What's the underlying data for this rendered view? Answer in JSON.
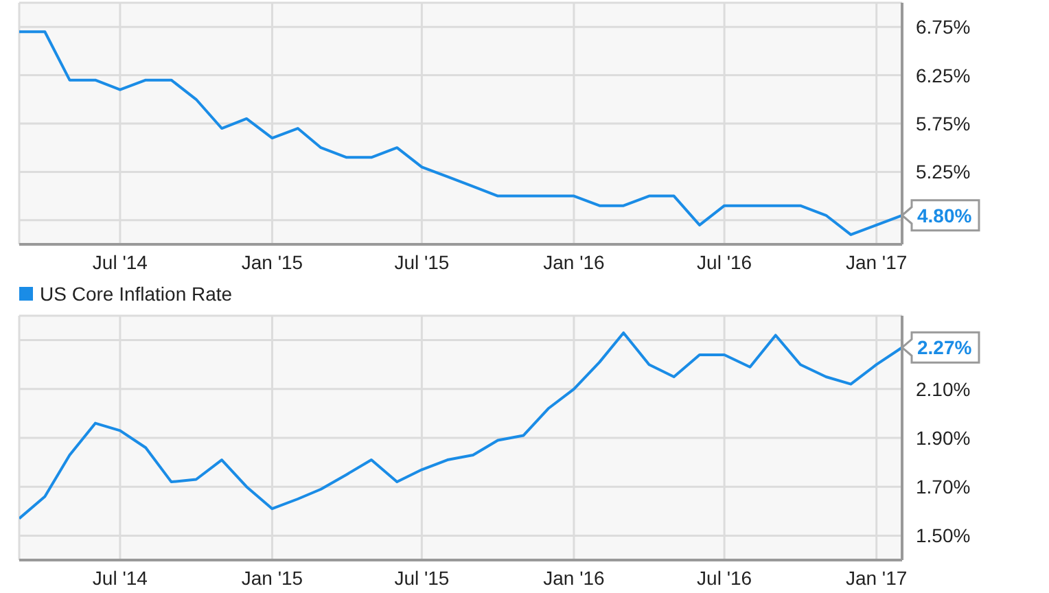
{
  "chart_data": [
    {
      "type": "line",
      "x": [
        "2014-03",
        "2014-04",
        "2014-05",
        "2014-06",
        "2014-07",
        "2014-08",
        "2014-09",
        "2014-10",
        "2014-11",
        "2014-12",
        "2015-01",
        "2015-02",
        "2015-03",
        "2015-04",
        "2015-05",
        "2015-06",
        "2015-07",
        "2015-08",
        "2015-09",
        "2015-10",
        "2015-11",
        "2015-12",
        "2016-01",
        "2016-02",
        "2016-03",
        "2016-04",
        "2016-05",
        "2016-06",
        "2016-07",
        "2016-08",
        "2016-09",
        "2016-10",
        "2016-11",
        "2016-12",
        "2017-01",
        "2017-02"
      ],
      "series": [
        {
          "color": "#1a8ce6",
          "values": [
            6.7,
            6.7,
            6.2,
            6.2,
            6.1,
            6.2,
            6.2,
            6.0,
            5.7,
            5.8,
            5.6,
            5.7,
            5.5,
            5.4,
            5.4,
            5.5,
            5.3,
            5.2,
            5.1,
            5.0,
            5.0,
            5.0,
            5.0,
            4.9,
            4.9,
            5.0,
            5.0,
            4.7,
            4.9,
            4.9,
            4.9,
            4.9,
            4.8,
            4.6,
            4.7,
            4.8
          ],
          "value_labels": [
            null,
            null,
            null,
            null,
            null,
            null,
            null,
            null,
            null,
            null,
            null,
            null,
            null,
            null,
            null,
            null,
            null,
            null,
            null,
            null,
            null,
            null,
            null,
            null,
            null,
            null,
            null,
            null,
            null,
            null,
            null,
            null,
            null,
            null,
            null,
            "4.80%"
          ]
        }
      ],
      "xlim": [
        "2014-03",
        "2017-02"
      ],
      "xticks": [
        {
          "value": "2014-07",
          "label": "Jul '14"
        },
        {
          "value": "2015-01",
          "label": "Jan '15"
        },
        {
          "value": "2015-07",
          "label": "Jul '15"
        },
        {
          "value": "2016-01",
          "label": "Jan '16"
        },
        {
          "value": "2016-07",
          "label": "Jul '16"
        },
        {
          "value": "2017-01",
          "label": "Jan '17"
        }
      ],
      "ylim": [
        4.5,
        7.0
      ],
      "yticks": [
        {
          "value": 4.75,
          "label": null
        },
        {
          "value": 5.25,
          "label": "5.25%"
        },
        {
          "value": 5.75,
          "label": "5.75%"
        },
        {
          "value": 6.25,
          "label": "6.25%"
        },
        {
          "value": 6.75,
          "label": "6.75%"
        }
      ],
      "grid": true,
      "marker": "none",
      "line_style": "solid"
    },
    {
      "type": "line",
      "x": [
        "2014-03",
        "2014-04",
        "2014-05",
        "2014-06",
        "2014-07",
        "2014-08",
        "2014-09",
        "2014-10",
        "2014-11",
        "2014-12",
        "2015-01",
        "2015-02",
        "2015-03",
        "2015-04",
        "2015-05",
        "2015-06",
        "2015-07",
        "2015-08",
        "2015-09",
        "2015-10",
        "2015-11",
        "2015-12",
        "2016-01",
        "2016-02",
        "2016-03",
        "2016-04",
        "2016-05",
        "2016-06",
        "2016-07",
        "2016-08",
        "2016-09",
        "2016-10",
        "2016-11",
        "2016-12",
        "2017-01",
        "2017-02"
      ],
      "series": [
        {
          "name": "US Core Inflation Rate",
          "color": "#1a8ce6",
          "values": [
            1.57,
            1.66,
            1.83,
            1.96,
            1.93,
            1.86,
            1.72,
            1.73,
            1.81,
            1.7,
            1.61,
            1.65,
            1.69,
            1.75,
            1.81,
            1.72,
            1.77,
            1.81,
            1.83,
            1.89,
            1.91,
            2.02,
            2.1,
            2.21,
            2.33,
            2.2,
            2.15,
            2.24,
            2.24,
            2.19,
            2.32,
            2.2,
            2.15,
            2.12,
            2.2,
            2.27
          ],
          "value_labels": [
            null,
            null,
            null,
            null,
            null,
            null,
            null,
            null,
            null,
            null,
            null,
            null,
            null,
            null,
            null,
            null,
            null,
            null,
            null,
            null,
            null,
            null,
            null,
            null,
            null,
            null,
            null,
            null,
            null,
            null,
            null,
            null,
            null,
            null,
            null,
            "2.27%"
          ]
        }
      ],
      "xlim": [
        "2014-03",
        "2017-02"
      ],
      "xticks": [
        {
          "value": "2014-07",
          "label": "Jul '14"
        },
        {
          "value": "2015-01",
          "label": "Jan '15"
        },
        {
          "value": "2015-07",
          "label": "Jul '15"
        },
        {
          "value": "2016-01",
          "label": "Jan '16"
        },
        {
          "value": "2016-07",
          "label": "Jul '16"
        },
        {
          "value": "2017-01",
          "label": "Jan '17"
        }
      ],
      "ylim": [
        1.4,
        2.4
      ],
      "yticks": [
        {
          "value": 1.5,
          "label": "1.50%"
        },
        {
          "value": 1.7,
          "label": "1.70%"
        },
        {
          "value": 1.9,
          "label": "1.90%"
        },
        {
          "value": 2.1,
          "label": "2.10%"
        },
        {
          "value": 2.3,
          "label": null
        }
      ],
      "grid": true,
      "legend": "top left",
      "marker": "none",
      "line_style": "solid"
    }
  ]
}
